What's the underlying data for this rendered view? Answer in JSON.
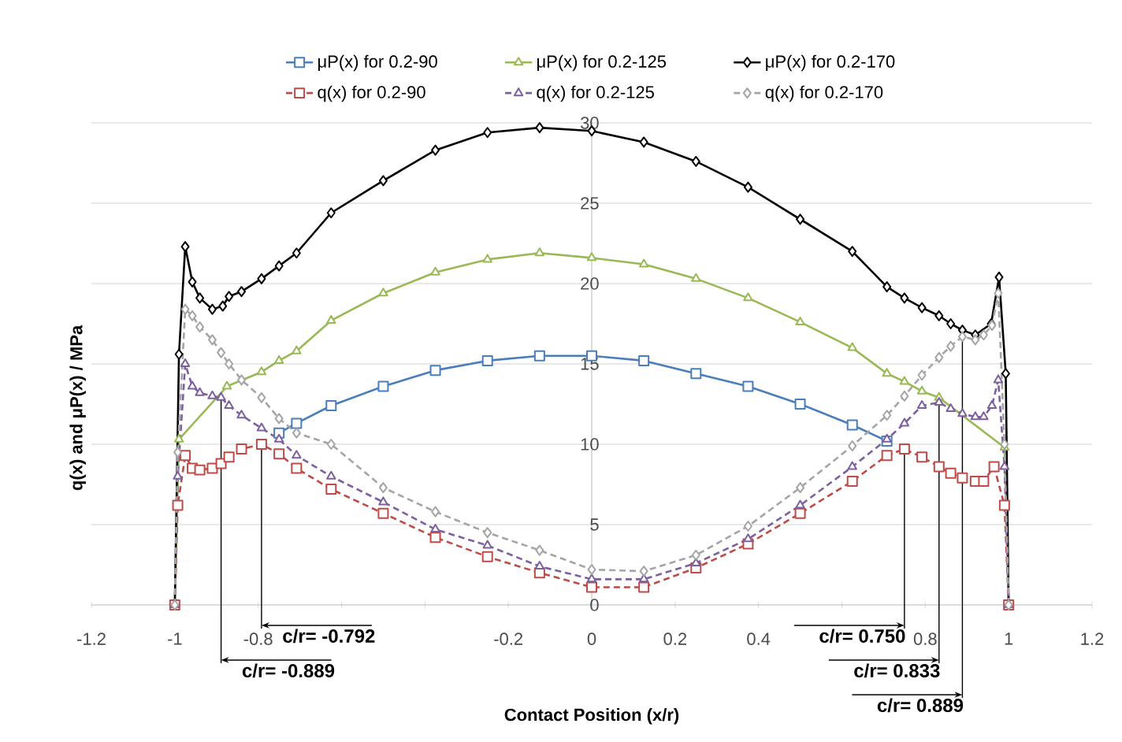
{
  "chart_data": {
    "type": "line",
    "xlabel": "Contact Position (x/r)",
    "ylabel": "q(x) and μP(x) / MPa",
    "xlim": [
      -1.2,
      1.2
    ],
    "ylim": [
      0,
      30
    ],
    "xticks": [
      -1.2,
      -1,
      -0.8,
      {
        "value": -0.6,
        "label": null
      },
      {
        "value": -0.4,
        "label": null
      },
      -0.2,
      0,
      0.2,
      0.4,
      {
        "value": 0.6,
        "label": null
      },
      0.8,
      1,
      1.2
    ],
    "yticks": [
      0,
      5,
      10,
      15,
      20,
      25,
      30
    ],
    "grid": "y",
    "legend": "top",
    "series": [
      {
        "name": "μP(x) for 0.2-90",
        "color": "#4a7ebb",
        "marker": "square",
        "line_style": "solid",
        "x": [
          -0.75,
          -0.708,
          -0.625,
          -0.5,
          -0.375,
          -0.25,
          -0.125,
          0,
          0.125,
          0.25,
          0.375,
          0.5,
          0.625,
          0.708
        ],
        "values": [
          10.7,
          11.3,
          12.4,
          13.6,
          14.6,
          15.2,
          15.5,
          15.5,
          15.2,
          14.4,
          13.6,
          12.5,
          11.2,
          10.2
        ]
      },
      {
        "name": "μP(x) for 0.2-125",
        "color": "#98b954",
        "marker": "triangle",
        "line_style": "solid",
        "x": [
          -1,
          -0.99,
          -0.875,
          -0.792,
          -0.75,
          -0.708,
          -0.625,
          -0.5,
          -0.375,
          -0.25,
          -0.125,
          0,
          0.125,
          0.25,
          0.375,
          0.5,
          0.625,
          0.708,
          0.75,
          0.792,
          0.833,
          0.99,
          1
        ],
        "values": [
          0,
          10.3,
          13.6,
          14.5,
          15.2,
          15.8,
          17.7,
          19.4,
          20.7,
          21.5,
          21.9,
          21.6,
          21.2,
          20.3,
          19.1,
          17.6,
          16.0,
          14.4,
          13.9,
          13.3,
          12.9,
          9.8,
          0
        ]
      },
      {
        "name": "μP(x) for 0.2-170",
        "color": "#000000",
        "marker": "diamond",
        "line_style": "solid",
        "x": [
          -1,
          -0.99,
          -0.975,
          -0.958,
          -0.94,
          -0.91,
          -0.885,
          -0.87,
          -0.84,
          -0.792,
          -0.75,
          -0.708,
          -0.625,
          -0.5,
          -0.375,
          -0.25,
          -0.125,
          0,
          0.125,
          0.25,
          0.375,
          0.5,
          0.625,
          0.708,
          0.75,
          0.792,
          0.833,
          0.861,
          0.889,
          0.92,
          0.958,
          0.977,
          0.993,
          1
        ],
        "values": [
          0,
          15.6,
          22.3,
          20.1,
          19.1,
          18.4,
          18.6,
          19.2,
          19.5,
          20.3,
          21.1,
          21.9,
          24.4,
          26.4,
          28.3,
          29.4,
          29.7,
          29.5,
          28.8,
          27.6,
          26.0,
          24.0,
          22.0,
          19.8,
          19.1,
          18.5,
          18.0,
          17.5,
          17.1,
          16.8,
          17.5,
          20.4,
          14.4,
          0
        ]
      },
      {
        "name": "q(x) for 0.2-90",
        "color": "#be4b48",
        "marker": "square",
        "line_style": "dashed",
        "x": [
          -1,
          -0.993,
          -0.975,
          -0.958,
          -0.94,
          -0.91,
          -0.889,
          -0.87,
          -0.84,
          -0.792,
          -0.75,
          -0.708,
          -0.625,
          -0.5,
          -0.375,
          -0.25,
          -0.125,
          0,
          0.125,
          0.25,
          0.375,
          0.5,
          0.625,
          0.708,
          0.75,
          0.792,
          0.833,
          0.861,
          0.889,
          0.92,
          0.94,
          0.965,
          0.99,
          1
        ],
        "values": [
          0,
          6.2,
          9.3,
          8.5,
          8.4,
          8.5,
          8.8,
          9.2,
          9.7,
          10.0,
          9.4,
          8.5,
          7.2,
          5.7,
          4.2,
          3.0,
          2.0,
          1.1,
          1.1,
          2.3,
          3.8,
          5.7,
          7.7,
          9.3,
          9.7,
          9.2,
          8.6,
          8.2,
          7.9,
          7.7,
          7.7,
          8.6,
          6.2,
          0
        ]
      },
      {
        "name": "q(x) for 0.2-125",
        "color": "#7d60a0",
        "marker": "triangle",
        "line_style": "dashed",
        "x": [
          -1,
          -0.993,
          -0.975,
          -0.958,
          -0.94,
          -0.91,
          -0.889,
          -0.87,
          -0.84,
          -0.792,
          -0.75,
          -0.708,
          -0.625,
          -0.5,
          -0.375,
          -0.25,
          -0.125,
          0,
          0.125,
          0.25,
          0.375,
          0.5,
          0.625,
          0.708,
          0.75,
          0.792,
          0.833,
          0.861,
          0.889,
          0.92,
          0.94,
          0.96,
          0.975,
          0.99,
          1
        ],
        "values": [
          0,
          8.0,
          15.0,
          13.6,
          13.2,
          13.0,
          12.9,
          12.4,
          11.8,
          11.0,
          10.3,
          9.3,
          8.0,
          6.4,
          4.7,
          3.7,
          2.4,
          1.6,
          1.6,
          2.6,
          4.1,
          6.2,
          8.6,
          10.3,
          11.3,
          12.4,
          12.6,
          12.2,
          11.9,
          11.7,
          11.7,
          12.4,
          14.0,
          8.6,
          0
        ]
      },
      {
        "name": "q(x) for 0.2-170",
        "color": "#a5a5a5",
        "marker": "diamond",
        "line_style": "dashed",
        "x": [
          -1,
          -0.993,
          -0.975,
          -0.958,
          -0.94,
          -0.91,
          -0.889,
          -0.87,
          -0.84,
          -0.792,
          -0.75,
          -0.708,
          -0.625,
          -0.5,
          -0.375,
          -0.25,
          -0.125,
          0,
          0.125,
          0.25,
          0.375,
          0.5,
          0.625,
          0.708,
          0.75,
          0.792,
          0.833,
          0.861,
          0.889,
          0.92,
          0.94,
          0.96,
          0.975,
          0.99,
          1
        ],
        "values": [
          0,
          9.5,
          18.4,
          18.0,
          17.3,
          16.5,
          15.7,
          15.0,
          14.0,
          12.9,
          11.6,
          10.7,
          10.0,
          7.3,
          5.8,
          4.5,
          3.4,
          2.2,
          2.1,
          3.1,
          4.9,
          7.3,
          9.9,
          11.8,
          13.0,
          14.3,
          15.4,
          16.1,
          16.7,
          16.5,
          16.8,
          17.4,
          19.4,
          10.0,
          0
        ]
      }
    ],
    "annotations": [
      {
        "text": "c/r= -0.792",
        "x": -0.792,
        "y": 10.0
      },
      {
        "text": "c/r= -0.889",
        "x": -0.889,
        "y": 13.0
      },
      {
        "text": "c/r= 0.750",
        "x": 0.75,
        "y": 9.7
      },
      {
        "text": "c/r= 0.833",
        "x": 0.833,
        "y": 12.6
      },
      {
        "text": "c/r= 0.889",
        "x": 0.889,
        "y": 16.7
      }
    ]
  }
}
